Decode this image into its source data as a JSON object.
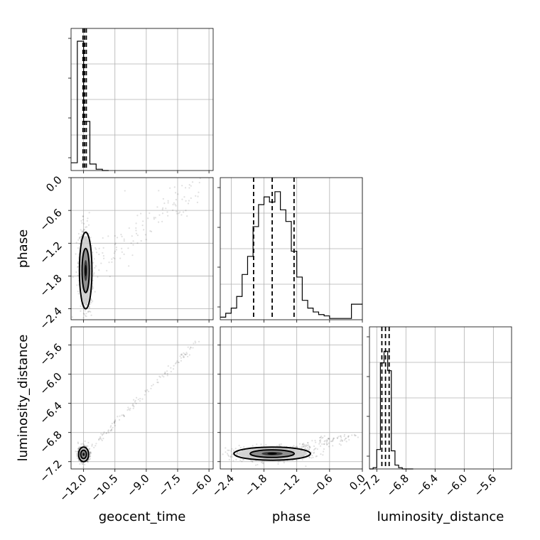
{
  "chart_data": {
    "type": "corner",
    "parameters": [
      "geocent_time",
      "phase",
      "luminosity_distance"
    ],
    "axis_labels": {
      "geocent_time": "geocent_time",
      "phase": "phase",
      "luminosity_distance": "luminosity_distance"
    },
    "ranges": {
      "geocent_time": [
        -12.6,
        -5.8
      ],
      "phase": [
        -2.6,
        0.0
      ],
      "luminosity_distance": [
        -7.3,
        -5.35
      ]
    },
    "ticks": {
      "geocent_time": {
        "values": [
          -12.0,
          -10.5,
          -9.0,
          -7.5,
          -6.0
        ],
        "labels": [
          "−12.0",
          "−10.5",
          "−9.0",
          "−7.5",
          "−6.0"
        ]
      },
      "phase": {
        "values": [
          -2.4,
          -1.8,
          -1.2,
          -0.6,
          0.0
        ],
        "labels": [
          "−2.4",
          "−1.8",
          "−1.2",
          "−0.6",
          "0.0"
        ]
      },
      "luminosity_distance": {
        "values": [
          -7.2,
          -6.8,
          -6.4,
          -6.0,
          -5.6
        ],
        "labels": [
          "−7.2",
          "−6.8",
          "−6.4",
          "−6.0",
          "−5.6"
        ]
      }
    },
    "quantiles": {
      "geocent_time": [
        -12.03,
        -11.95,
        -11.87
      ],
      "phase": [
        -1.99,
        -1.65,
        -1.25
      ],
      "luminosity_distance": [
        -7.13,
        -7.08,
        -7.03
      ]
    },
    "histograms": {
      "geocent_time": {
        "edges": [
          -12.6,
          -12.3,
          -12.0,
          -11.7,
          -11.4,
          -11.1,
          -10.8
        ],
        "counts": [
          0.06,
          1.0,
          0.38,
          0.05,
          0.01,
          0.0
        ]
      },
      "phase": {
        "edges": [
          -2.6,
          -2.5,
          -2.4,
          -2.3,
          -2.2,
          -2.1,
          -2.0,
          -1.9,
          -1.8,
          -1.7,
          -1.6,
          -1.5,
          -1.4,
          -1.3,
          -1.2,
          -1.1,
          -1.0,
          -0.9,
          -0.8,
          -0.7,
          -0.6,
          -0.5,
          -0.4,
          -0.3,
          -0.2,
          -0.1,
          0.0
        ],
        "counts": [
          0.02,
          0.05,
          0.09,
          0.18,
          0.35,
          0.49,
          0.72,
          0.89,
          0.95,
          0.91,
          0.99,
          0.85,
          0.76,
          0.53,
          0.33,
          0.15,
          0.09,
          0.06,
          0.04,
          0.03,
          0.01,
          0.01,
          0.01,
          0.01,
          0.12,
          0.12
        ]
      },
      "luminosity_distance": {
        "edges": [
          -7.3,
          -7.25,
          -7.2,
          -7.15,
          -7.1,
          -7.05,
          -7.0,
          -6.95,
          -6.9,
          -6.85,
          -6.8,
          -6.75,
          -6.7
        ],
        "counts": [
          0.0,
          0.01,
          0.15,
          0.82,
          0.91,
          0.76,
          0.14,
          0.03,
          0.01,
          0.0,
          0.0,
          0.0
        ]
      }
    },
    "pairs": [
      {
        "x": "geocent_time",
        "y": "phase",
        "center": [
          -11.9,
          -1.7
        ],
        "spread": [
          0.15,
          0.35
        ]
      },
      {
        "x": "geocent_time",
        "y": "luminosity_distance",
        "center": [
          -12.0,
          -7.1
        ],
        "spread": [
          0.12,
          0.05
        ]
      },
      {
        "x": "phase",
        "y": "luminosity_distance",
        "center": [
          -1.65,
          -7.09
        ],
        "spread": [
          0.35,
          0.045
        ]
      }
    ],
    "grid": true,
    "dashed_quantile_lines": true
  }
}
